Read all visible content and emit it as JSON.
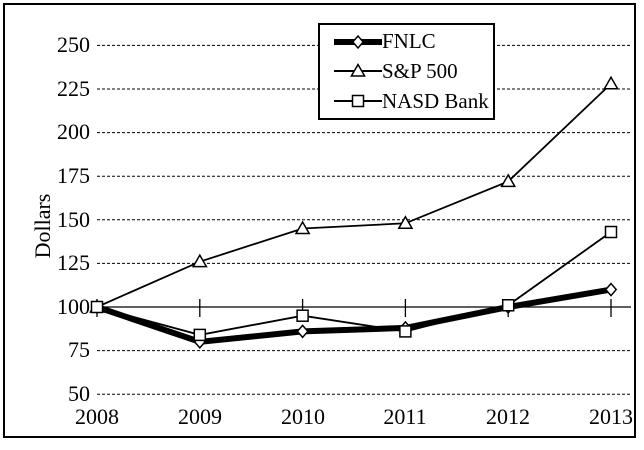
{
  "figure": {
    "ylabel": "Dollars",
    "background_color": "#ffffff",
    "ink_color": "#000000",
    "marker_fill_color": "#ffffff"
  },
  "chart_data": {
    "type": "line",
    "title": "",
    "xlabel": "",
    "ylabel": "Dollars",
    "x": [
      "2008",
      "2009",
      "2010",
      "2011",
      "2012",
      "2013"
    ],
    "series": [
      {
        "id": "fnlc",
        "name": "FNLC",
        "marker": "diamond",
        "line_style": "thick",
        "values": [
          100,
          80,
          86,
          88,
          100,
          110
        ]
      },
      {
        "id": "sp500",
        "name": "S&P 500",
        "marker": "triangle",
        "line_style": "thin",
        "values": [
          100,
          126,
          145,
          148,
          172,
          228
        ]
      },
      {
        "id": "nasd-bank",
        "name": "NASD Bank",
        "marker": "square",
        "line_style": "thin",
        "values": [
          100,
          84,
          95,
          86,
          101,
          143
        ]
      }
    ],
    "ylim": [
      50,
      250
    ],
    "yticks": [
      250,
      225,
      200,
      175,
      150,
      125,
      100,
      75,
      50
    ],
    "axis_cross_at": 100,
    "grid": "horizontal-dashed",
    "legend_position": "top-center"
  }
}
